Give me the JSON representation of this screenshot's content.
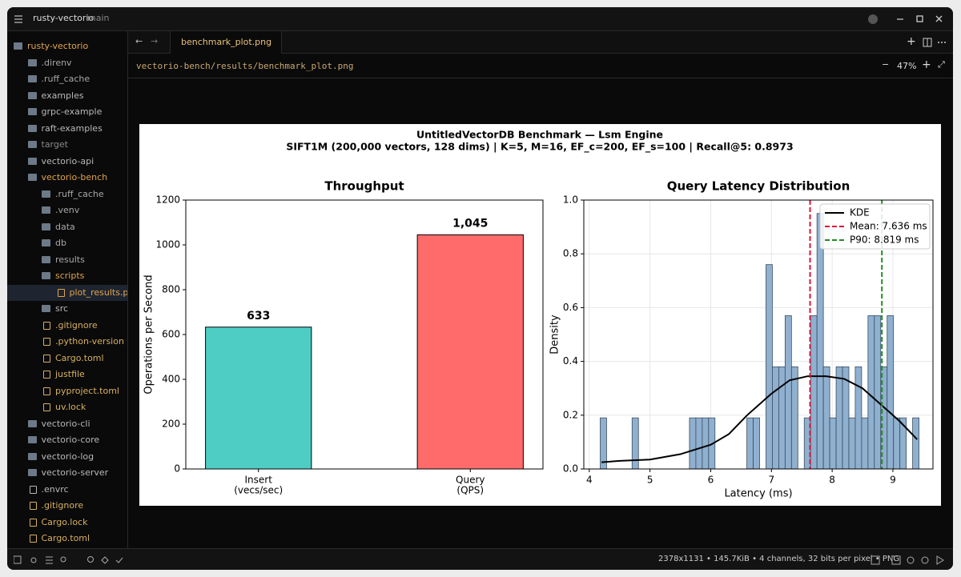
{
  "titlebar": {
    "project": "rusty-vectorio",
    "branch": "main"
  },
  "tree": [
    {
      "name": "rusty-vectorio",
      "depth": 0,
      "kind": "folder-open",
      "color": "#e0a44c"
    },
    {
      "name": ".direnv",
      "depth": 1,
      "kind": "folder",
      "color": "#a8a8a8"
    },
    {
      "name": ".ruff_cache",
      "depth": 1,
      "kind": "folder",
      "color": "#a8a8a8"
    },
    {
      "name": "examples",
      "depth": 1,
      "kind": "folder",
      "color": "#b8b8b8"
    },
    {
      "name": "grpc-example",
      "depth": 1,
      "kind": "folder",
      "color": "#b8b8b8"
    },
    {
      "name": "raft-examples",
      "depth": 1,
      "kind": "folder",
      "color": "#b8b8b8"
    },
    {
      "name": "target",
      "depth": 1,
      "kind": "folder",
      "color": "#8a8a8a"
    },
    {
      "name": "vectorio-api",
      "depth": 1,
      "kind": "folder",
      "color": "#b8b8b8"
    },
    {
      "name": "vectorio-bench",
      "depth": 1,
      "kind": "folder-open",
      "color": "#e0a44c"
    },
    {
      "name": ".ruff_cache",
      "depth": 2,
      "kind": "folder",
      "color": "#a8a8a8"
    },
    {
      "name": ".venv",
      "depth": 2,
      "kind": "folder",
      "color": "#a8a8a8"
    },
    {
      "name": "data",
      "depth": 2,
      "kind": "folder",
      "color": "#a8a8a8"
    },
    {
      "name": "db",
      "depth": 2,
      "kind": "folder",
      "color": "#a8a8a8"
    },
    {
      "name": "results",
      "depth": 2,
      "kind": "folder",
      "color": "#a8a8a8"
    },
    {
      "name": "scripts",
      "depth": 2,
      "kind": "folder-open",
      "color": "#e0a44c"
    },
    {
      "name": "plot_results.py",
      "depth": 3,
      "kind": "file",
      "color": "#e0a44c"
    },
    {
      "name": "src",
      "depth": 2,
      "kind": "folder",
      "color": "#b8b8b8"
    },
    {
      "name": ".gitignore",
      "depth": 2,
      "kind": "file",
      "color": "#d8b060"
    },
    {
      "name": ".python-version",
      "depth": 2,
      "kind": "file",
      "color": "#d8b060"
    },
    {
      "name": "Cargo.toml",
      "depth": 2,
      "kind": "file",
      "color": "#d8b060"
    },
    {
      "name": "justfile",
      "depth": 2,
      "kind": "file",
      "color": "#d8b060"
    },
    {
      "name": "pyproject.toml",
      "depth": 2,
      "kind": "file",
      "color": "#d8b060"
    },
    {
      "name": "uv.lock",
      "depth": 2,
      "kind": "file",
      "color": "#d8b060"
    },
    {
      "name": "vectorio-cli",
      "depth": 1,
      "kind": "folder",
      "color": "#b8b8b8"
    },
    {
      "name": "vectorio-core",
      "depth": 1,
      "kind": "folder",
      "color": "#b8b8b8"
    },
    {
      "name": "vectorio-log",
      "depth": 1,
      "kind": "folder",
      "color": "#b8b8b8"
    },
    {
      "name": "vectorio-server",
      "depth": 1,
      "kind": "folder",
      "color": "#b8b8b8"
    },
    {
      "name": ".envrc",
      "depth": 1,
      "kind": "file",
      "color": "#b8b8b8"
    },
    {
      "name": ".gitignore",
      "depth": 1,
      "kind": "file",
      "color": "#d8b060"
    },
    {
      "name": "Cargo.lock",
      "depth": 1,
      "kind": "file",
      "color": "#d8b060"
    },
    {
      "name": "Cargo.toml",
      "depth": 1,
      "kind": "file",
      "color": "#d8b060"
    }
  ],
  "tab": "benchmark_plot.png",
  "path": "vectorio-bench/results/benchmark_plot.png",
  "zoom": "47%",
  "statusbar": "2378x1131 • 145.7KiB • 4 channels, 32 bits per pixel • PNG",
  "figure": {
    "title": "UntitledVectorDB Benchmark — Lsm Engine",
    "subtitle": "SIFT1M (200,000 vectors, 128 dims) | K=5, M=16, EF_c=200, EF_s=100 | Recall@5: 0.8973",
    "charts": [
      {
        "type": "bar",
        "title": "Throughput",
        "ylabel": "Operations per Second",
        "categories": [
          [
            "Insert",
            "(vecs/sec)"
          ],
          [
            "Query",
            "(QPS)"
          ]
        ],
        "values": [
          633,
          1045
        ],
        "value_labels": [
          "633",
          "1,045"
        ],
        "colors": [
          "#4ecdc4",
          "#ff6b6b"
        ],
        "ylim": [
          0,
          1200
        ],
        "yticks": [
          0,
          200,
          400,
          600,
          800,
          1000,
          1200
        ],
        "grid": false
      },
      {
        "type": "histogram",
        "title": "Query Latency Distribution",
        "xlabel": "Latency (ms)",
        "ylabel": "Density",
        "bins": [
          4.18,
          4.285,
          4.39,
          4.495,
          4.6,
          4.705,
          4.81,
          4.915,
          5.02,
          5.125,
          5.23,
          5.335,
          5.44,
          5.545,
          5.65,
          5.755,
          5.86,
          5.965,
          6.07,
          6.175,
          6.28,
          6.385,
          6.49,
          6.595,
          6.7,
          6.805,
          6.91,
          7.015,
          7.12,
          7.225,
          7.33,
          7.435,
          7.54,
          7.645,
          7.75,
          7.855,
          7.96,
          8.065,
          8.17,
          8.275,
          8.38,
          8.485,
          8.59,
          8.695,
          8.8,
          8.905,
          9.01,
          9.115,
          9.22,
          9.325,
          9.43
        ],
        "values": [
          0.19,
          0,
          0,
          0,
          0,
          0.19,
          0,
          0,
          0,
          0,
          0,
          0,
          0,
          0,
          0.19,
          0.19,
          0.19,
          0.19,
          0,
          0,
          0,
          0,
          0,
          0.19,
          0.19,
          0,
          0.76,
          0.38,
          0.38,
          0.57,
          0.38,
          0,
          0.19,
          0.57,
          0.95,
          0.38,
          0.19,
          0.38,
          0.38,
          0.19,
          0.38,
          0.19,
          0.57,
          0.57,
          0.38,
          0.57,
          0.19,
          0.19,
          0,
          0.19
        ],
        "color": "#8fb0cf",
        "kde": {
          "name": "KDE",
          "color": "#000000",
          "x": [
            4.2,
            4.5,
            5,
            5.5,
            6,
            6.3,
            6.6,
            7,
            7.3,
            7.6,
            7.9,
            8.2,
            8.5,
            8.8,
            9.1,
            9.4
          ],
          "values": [
            0.025,
            0.03,
            0.035,
            0.055,
            0.09,
            0.13,
            0.2,
            0.28,
            0.33,
            0.345,
            0.345,
            0.335,
            0.3,
            0.24,
            0.18,
            0.11
          ]
        },
        "vlines": [
          {
            "name": "Mean: 7.636 ms",
            "value": 7.636,
            "color": "#dc143c"
          },
          {
            "name": "P90: 8.819 ms",
            "value": 8.819,
            "color": "#228b22"
          }
        ],
        "xlim": [
          3.91,
          9.66
        ],
        "xticks": [
          4,
          5,
          6,
          7,
          8,
          9
        ],
        "ylim": [
          0,
          1.0
        ],
        "yticks": [
          {
            "value": 0,
            "label": "0.0"
          },
          {
            "value": 0.2,
            "label": "0.2"
          },
          {
            "value": 0.4,
            "label": "0.4"
          },
          {
            "value": 0.6,
            "label": "0.6"
          },
          {
            "value": 0.8,
            "label": "0.8"
          },
          {
            "value": 1.0,
            "label": "1.0"
          }
        ],
        "grid": true,
        "legend": "upper right"
      }
    ]
  }
}
